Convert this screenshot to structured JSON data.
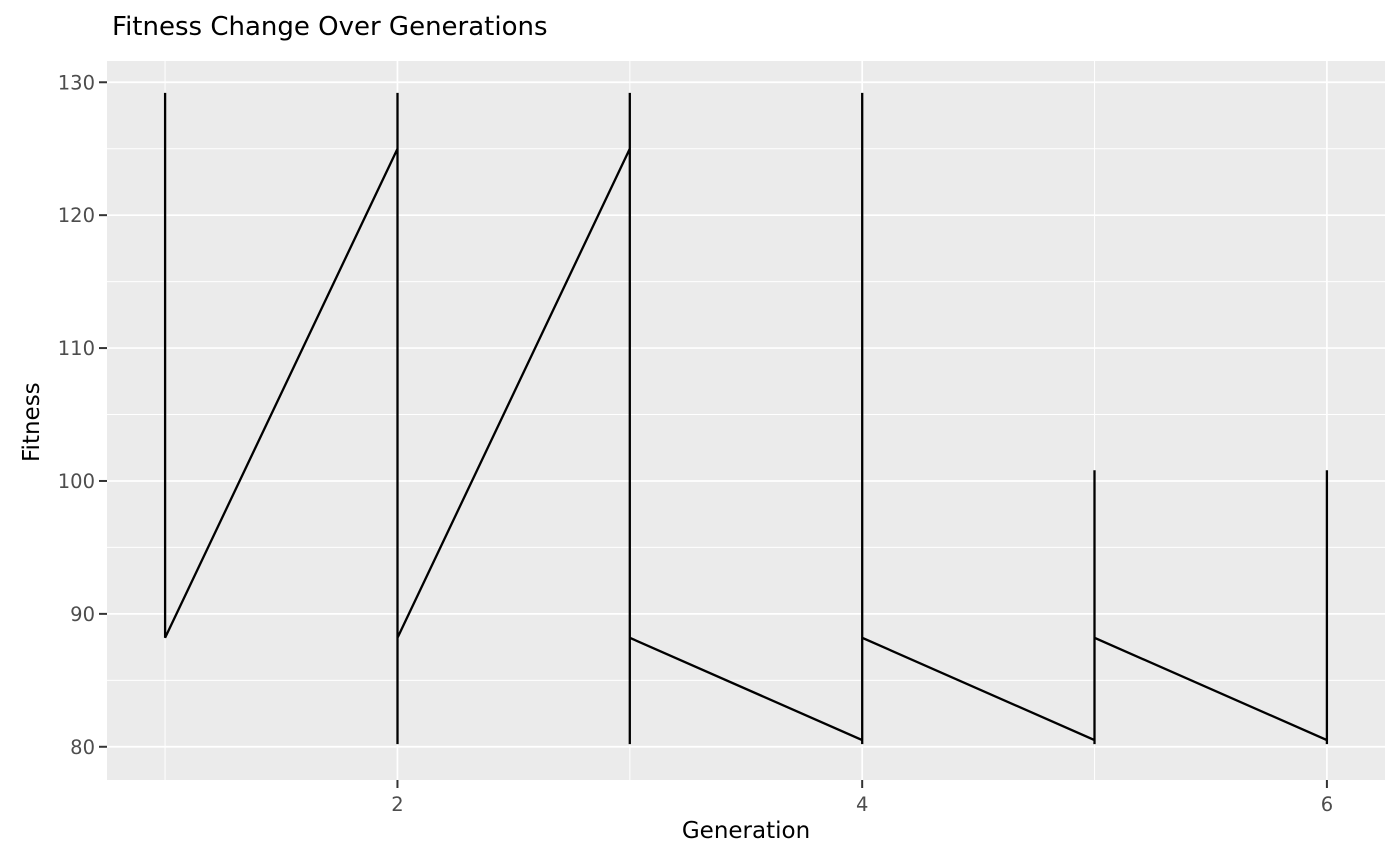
{
  "colors": {
    "figure_background": "#FFFFFF",
    "panel_background": "#EBEBEB",
    "grid_major": "#FFFFFF",
    "grid_minor": "#FFFFFF",
    "line": "#000000",
    "tick_mark": "#333333",
    "tick_label": "#4D4D4D",
    "title_text": "#000000",
    "axis_title_text": "#000000"
  },
  "chart_data": {
    "type": "line",
    "title": "Fitness Change Over Generations",
    "xlabel": "Generation",
    "ylabel": "Fitness",
    "xlim": [
      0.75,
      6.25
    ],
    "ylim": [
      77.5,
      131.6
    ],
    "x_ticks": [
      {
        "value": 2,
        "label": "2"
      },
      {
        "value": 4,
        "label": "4"
      },
      {
        "value": 6,
        "label": "6"
      }
    ],
    "y_ticks": [
      {
        "value": 80,
        "label": "80"
      },
      {
        "value": 90,
        "label": "90"
      },
      {
        "value": 100,
        "label": "100"
      },
      {
        "value": 110,
        "label": "110"
      },
      {
        "value": 120,
        "label": "120"
      },
      {
        "value": 130,
        "label": "130"
      }
    ],
    "x_minor": [
      1,
      3,
      5
    ],
    "y_minor": [
      85,
      95,
      105,
      115,
      125
    ],
    "grid": "major-and-minor",
    "legend": "none",
    "series": [
      {
        "name": "fitness",
        "color": "#000000",
        "points": [
          [
            1,
            100.8
          ],
          [
            1,
            129.2
          ],
          [
            1,
            88.2
          ],
          [
            2,
            125.0
          ],
          [
            2,
            129.2
          ],
          [
            2,
            80.2
          ],
          [
            2,
            88.2
          ],
          [
            3,
            125.0
          ],
          [
            3,
            129.2
          ],
          [
            3,
            80.2
          ],
          [
            3,
            88.2
          ],
          [
            4,
            80.5
          ],
          [
            4,
            129.2
          ],
          [
            4,
            80.2
          ],
          [
            4,
            88.2
          ],
          [
            5,
            80.5
          ],
          [
            5,
            100.8
          ],
          [
            5,
            80.2
          ],
          [
            5,
            88.2
          ],
          [
            6,
            80.5
          ],
          [
            6,
            100.8
          ],
          [
            6,
            80.2
          ]
        ]
      }
    ]
  }
}
